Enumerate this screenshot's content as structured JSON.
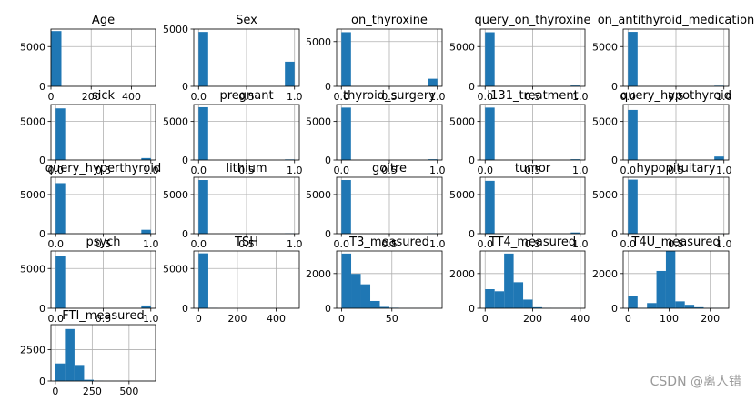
{
  "watermark": "CSDN @离人错",
  "colors": {
    "bar": "#1f77b4",
    "grid": "#b0b0b0",
    "axis": "#000000"
  },
  "chart_data": [
    {
      "type": "bar",
      "title": "Age",
      "xlim": [
        0,
        520
      ],
      "ylim": [
        0,
        7200
      ],
      "xticks": [
        0,
        200,
        400
      ],
      "yticks": [
        0,
        5000
      ],
      "bins": [
        [
          0,
          52,
          6950
        ]
      ],
      "grid": true
    },
    {
      "type": "bar",
      "title": "Sex",
      "xlim": [
        -0.05,
        1.05
      ],
      "ylim": [
        0,
        5000
      ],
      "xticks": [
        0.0,
        0.5,
        1.0
      ],
      "yticks": [
        0,
        5000
      ],
      "bins": [
        [
          0,
          0.1,
          4750
        ],
        [
          0.9,
          1.0,
          2150
        ]
      ],
      "grid": true
    },
    {
      "type": "bar",
      "title": "on_thyroxine",
      "xlim": [
        -0.05,
        1.05
      ],
      "ylim": [
        0,
        6400
      ],
      "xticks": [
        0.0,
        0.5,
        1.0
      ],
      "yticks": [
        0,
        5000
      ],
      "bins": [
        [
          0,
          0.1,
          6050
        ],
        [
          0.9,
          1.0,
          850
        ]
      ],
      "grid": true
    },
    {
      "type": "bar",
      "title": "query_on_thyroxine",
      "xlim": [
        -0.05,
        1.05
      ],
      "ylim": [
        0,
        7200
      ],
      "xticks": [
        0.0,
        0.5,
        1.0
      ],
      "yticks": [
        0,
        5000
      ],
      "bins": [
        [
          0,
          0.1,
          6800
        ],
        [
          0.9,
          1.0,
          100
        ]
      ],
      "grid": true
    },
    {
      "type": "bar",
      "title": "on_antithyroid_medication",
      "xlim": [
        -0.05,
        1.05
      ],
      "ylim": [
        0,
        7200
      ],
      "xticks": [
        0.0,
        0.5,
        1.0
      ],
      "yticks": [
        0,
        5000
      ],
      "bins": [
        [
          0,
          0.1,
          6850
        ],
        [
          0.9,
          1.0,
          80
        ]
      ],
      "grid": true
    },
    {
      "type": "bar",
      "title": "sick",
      "xlim": [
        -0.05,
        1.05
      ],
      "ylim": [
        0,
        7200
      ],
      "xticks": [
        0.0,
        0.5,
        1.0
      ],
      "yticks": [
        0,
        5000
      ],
      "bins": [
        [
          0,
          0.1,
          6700
        ],
        [
          0.9,
          1.0,
          250
        ]
      ],
      "grid": true
    },
    {
      "type": "bar",
      "title": "pregnant",
      "xlim": [
        -0.05,
        1.05
      ],
      "ylim": [
        0,
        7200
      ],
      "xticks": [
        0.0,
        0.5,
        1.0
      ],
      "yticks": [
        0,
        5000
      ],
      "bins": [
        [
          0,
          0.1,
          6850
        ],
        [
          0.9,
          1.0,
          80
        ]
      ],
      "grid": true
    },
    {
      "type": "bar",
      "title": "thyroid_surgery",
      "xlim": [
        -0.05,
        1.05
      ],
      "ylim": [
        0,
        7200
      ],
      "xticks": [
        0.0,
        0.5,
        1.0
      ],
      "yticks": [
        0,
        5000
      ],
      "bins": [
        [
          0,
          0.1,
          6800
        ],
        [
          0.9,
          1.0,
          100
        ]
      ],
      "grid": true
    },
    {
      "type": "bar",
      "title": "I131_treatment",
      "xlim": [
        -0.05,
        1.05
      ],
      "ylim": [
        0,
        7200
      ],
      "xticks": [
        0.0,
        0.5,
        1.0
      ],
      "yticks": [
        0,
        5000
      ],
      "bins": [
        [
          0,
          0.1,
          6800
        ],
        [
          0.9,
          1.0,
          100
        ]
      ],
      "grid": true
    },
    {
      "type": "bar",
      "title": "query_hypothyroid",
      "xlim": [
        -0.05,
        1.05
      ],
      "ylim": [
        0,
        7200
      ],
      "xticks": [
        0.0,
        0.5,
        1.0
      ],
      "yticks": [
        0,
        5000
      ],
      "bins": [
        [
          0,
          0.1,
          6500
        ],
        [
          0.9,
          1.0,
          450
        ]
      ],
      "grid": true
    },
    {
      "type": "bar",
      "title": "query_hyperthyroid",
      "xlim": [
        -0.05,
        1.05
      ],
      "ylim": [
        0,
        7200
      ],
      "xticks": [
        0.0,
        0.5,
        1.0
      ],
      "yticks": [
        0,
        5000
      ],
      "bins": [
        [
          0,
          0.1,
          6450
        ],
        [
          0.9,
          1.0,
          500
        ]
      ],
      "grid": true
    },
    {
      "type": "bar",
      "title": "lithium",
      "xlim": [
        -0.05,
        1.05
      ],
      "ylim": [
        0,
        7200
      ],
      "xticks": [
        0.0,
        0.5,
        1.0
      ],
      "yticks": [
        0,
        5000
      ],
      "bins": [
        [
          0,
          0.1,
          6850
        ],
        [
          0.9,
          1.0,
          50
        ]
      ],
      "grid": true
    },
    {
      "type": "bar",
      "title": "goitre",
      "xlim": [
        -0.05,
        1.05
      ],
      "ylim": [
        0,
        7200
      ],
      "xticks": [
        0.0,
        0.5,
        1.0
      ],
      "yticks": [
        0,
        5000
      ],
      "bins": [
        [
          0,
          0.1,
          6850
        ],
        [
          0.9,
          1.0,
          50
        ]
      ],
      "grid": true
    },
    {
      "type": "bar",
      "title": "tumor",
      "xlim": [
        -0.05,
        1.05
      ],
      "ylim": [
        0,
        7200
      ],
      "xticks": [
        0.0,
        0.5,
        1.0
      ],
      "yticks": [
        0,
        5000
      ],
      "bins": [
        [
          0,
          0.1,
          6750
        ],
        [
          0.9,
          1.0,
          150
        ]
      ],
      "grid": true
    },
    {
      "type": "bar",
      "title": "hypopituitary",
      "xlim": [
        -0.05,
        1.05
      ],
      "ylim": [
        0,
        7200
      ],
      "xticks": [
        0.0,
        0.5,
        1.0
      ],
      "yticks": [
        0,
        5000
      ],
      "bins": [
        [
          0,
          0.1,
          6900
        ],
        [
          0.9,
          1.0,
          10
        ]
      ],
      "grid": true
    },
    {
      "type": "bar",
      "title": "psych",
      "xlim": [
        -0.05,
        1.05
      ],
      "ylim": [
        0,
        7200
      ],
      "xticks": [
        0.0,
        0.5,
        1.0
      ],
      "yticks": [
        0,
        5000
      ],
      "bins": [
        [
          0,
          0.1,
          6600
        ],
        [
          0.9,
          1.0,
          350
        ]
      ],
      "grid": true
    },
    {
      "type": "bar",
      "title": "TSH",
      "xlim": [
        -25,
        520
      ],
      "ylim": [
        0,
        7200
      ],
      "xticks": [
        0,
        200,
        400
      ],
      "yticks": [
        0,
        5000
      ],
      "bins": [
        [
          0,
          50,
          6900
        ],
        [
          50,
          100,
          30
        ]
      ],
      "grid": true
    },
    {
      "type": "bar",
      "title": "T3_measured",
      "xlim": [
        -5,
        100
      ],
      "ylim": [
        0,
        3300
      ],
      "xticks": [
        0,
        50
      ],
      "yticks": [
        0,
        2000
      ],
      "bins": [
        [
          0,
          9.5,
          3150
        ],
        [
          9.5,
          19,
          1980
        ],
        [
          19,
          28.5,
          1380
        ],
        [
          28.5,
          38,
          420
        ],
        [
          38,
          47.5,
          80
        ],
        [
          47.5,
          57,
          30
        ],
        [
          57,
          95,
          5
        ]
      ],
      "grid": true
    },
    {
      "type": "bar",
      "title": "TT4_measured",
      "xlim": [
        -20,
        420
      ],
      "ylim": [
        0,
        3300
      ],
      "xticks": [
        0,
        200,
        400
      ],
      "yticks": [
        0,
        2000
      ],
      "bins": [
        [
          0,
          40,
          1100
        ],
        [
          40,
          80,
          980
        ],
        [
          80,
          120,
          3150
        ],
        [
          120,
          160,
          1500
        ],
        [
          160,
          200,
          500
        ],
        [
          200,
          240,
          60
        ],
        [
          240,
          280,
          15
        ],
        [
          280,
          400,
          5
        ]
      ],
      "grid": true
    },
    {
      "type": "bar",
      "title": "T4U_measured",
      "xlim": [
        -12,
        245
      ],
      "ylim": [
        0,
        3300
      ],
      "xticks": [
        0,
        100,
        200
      ],
      "yticks": [
        0,
        2000
      ],
      "bins": [
        [
          0,
          23,
          700
        ],
        [
          23,
          46,
          20
        ],
        [
          46,
          69,
          300
        ],
        [
          69,
          92,
          2150
        ],
        [
          92,
          115,
          3300
        ],
        [
          115,
          138,
          400
        ],
        [
          138,
          161,
          200
        ],
        [
          161,
          184,
          60
        ],
        [
          184,
          235,
          10
        ]
      ],
      "grid": true
    },
    {
      "type": "bar",
      "title": "FTI_measured",
      "xlim": [
        -30,
        680
      ],
      "ylim": [
        0,
        4500
      ],
      "xticks": [
        0,
        250,
        500
      ],
      "yticks": [
        0,
        2500
      ],
      "bins": [
        [
          0,
          65,
          1400
        ],
        [
          65,
          130,
          4150
        ],
        [
          130,
          195,
          1280
        ],
        [
          195,
          260,
          100
        ],
        [
          260,
          325,
          20
        ],
        [
          325,
          650,
          5
        ]
      ],
      "grid": true
    }
  ]
}
